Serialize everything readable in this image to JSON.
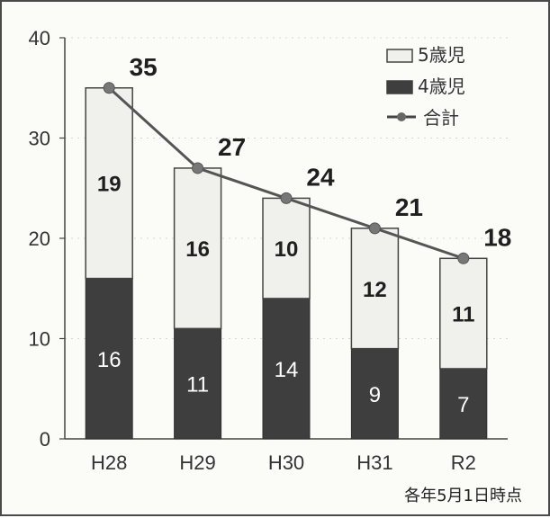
{
  "chart_data": {
    "type": "bar",
    "categories": [
      "H28",
      "H29",
      "H30",
      "H31",
      "R2"
    ],
    "series": [
      {
        "name": "4歳児",
        "values": [
          16,
          11,
          14,
          9,
          7
        ],
        "color": "#3e3e3e"
      },
      {
        "name": "5歳児",
        "values": [
          19,
          16,
          10,
          12,
          11
        ],
        "color": "#f0f0ec"
      },
      {
        "name": "合計",
        "values": [
          35,
          27,
          24,
          21,
          18
        ],
        "type": "line",
        "color": "#555555"
      }
    ],
    "stacked": true,
    "ylim": [
      0,
      40
    ],
    "yticks": [
      0,
      10,
      20,
      30,
      40
    ],
    "legend_position": "top-right",
    "note": "各年5月1日時点"
  }
}
